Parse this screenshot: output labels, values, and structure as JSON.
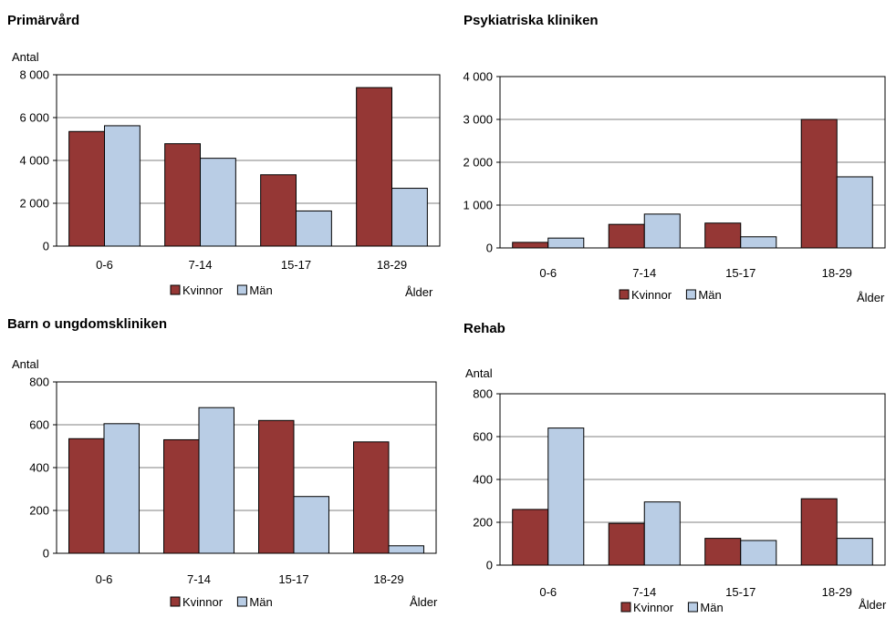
{
  "colors": {
    "kvinnor": "#953735",
    "man": "#b9cde5",
    "bar_stroke": "#000000",
    "grid": "#808080"
  },
  "chart_data": [
    {
      "type": "bar",
      "title": "Primärvård",
      "ylabel": "Antal",
      "xlabel": "Ålder",
      "categories": [
        "0-6",
        "7-14",
        "15-17",
        "18-29"
      ],
      "ylim": [
        0,
        8000
      ],
      "yticks": [
        0,
        2000,
        4000,
        6000,
        8000
      ],
      "ytick_labels": [
        "0",
        "2 000",
        "4 000",
        "6 000",
        "8 000"
      ],
      "legend_position": "bottom",
      "grid": true,
      "series": [
        {
          "name": "Kvinnor",
          "values": [
            5350,
            4780,
            3330,
            7400
          ]
        },
        {
          "name": "Män",
          "values": [
            5620,
            4100,
            1640,
            2700
          ]
        }
      ]
    },
    {
      "type": "bar",
      "title": "Psykiatriska kliniken",
      "ylabel": "",
      "xlabel": "Ålder",
      "categories": [
        "0-6",
        "7-14",
        "15-17",
        "18-29"
      ],
      "ylim": [
        0,
        4000
      ],
      "yticks": [
        0,
        1000,
        2000,
        3000,
        4000
      ],
      "ytick_labels": [
        "0",
        "1 000",
        "2 000",
        "3 000",
        "4 000"
      ],
      "legend_position": "bottom",
      "grid": true,
      "series": [
        {
          "name": "Kvinnor",
          "values": [
            130,
            550,
            580,
            3000
          ]
        },
        {
          "name": "Män",
          "values": [
            230,
            790,
            260,
            1660
          ]
        }
      ]
    },
    {
      "type": "bar",
      "title": "Barn o ungdomskliniken",
      "ylabel": "Antal",
      "xlabel": "Ålder",
      "categories": [
        "0-6",
        "7-14",
        "15-17",
        "18-29"
      ],
      "ylim": [
        0,
        800
      ],
      "yticks": [
        0,
        200,
        400,
        600,
        800
      ],
      "ytick_labels": [
        "0",
        "200",
        "400",
        "600",
        "800"
      ],
      "legend_position": "bottom",
      "grid": true,
      "series": [
        {
          "name": "Kvinnor",
          "values": [
            535,
            530,
            620,
            520
          ]
        },
        {
          "name": "Män",
          "values": [
            605,
            680,
            265,
            35
          ]
        }
      ]
    },
    {
      "type": "bar",
      "title": "Rehab",
      "ylabel": "Antal",
      "xlabel": "Ålder",
      "categories": [
        "0-6",
        "7-14",
        "15-17",
        "18-29"
      ],
      "ylim": [
        0,
        800
      ],
      "yticks": [
        0,
        200,
        400,
        600,
        800
      ],
      "ytick_labels": [
        "0",
        "200",
        "400",
        "600",
        "800"
      ],
      "legend_position": "bottom",
      "grid": true,
      "series": [
        {
          "name": "Kvinnor",
          "values": [
            260,
            195,
            125,
            310
          ]
        },
        {
          "name": "Män",
          "values": [
            640,
            295,
            115,
            125
          ]
        }
      ]
    }
  ]
}
